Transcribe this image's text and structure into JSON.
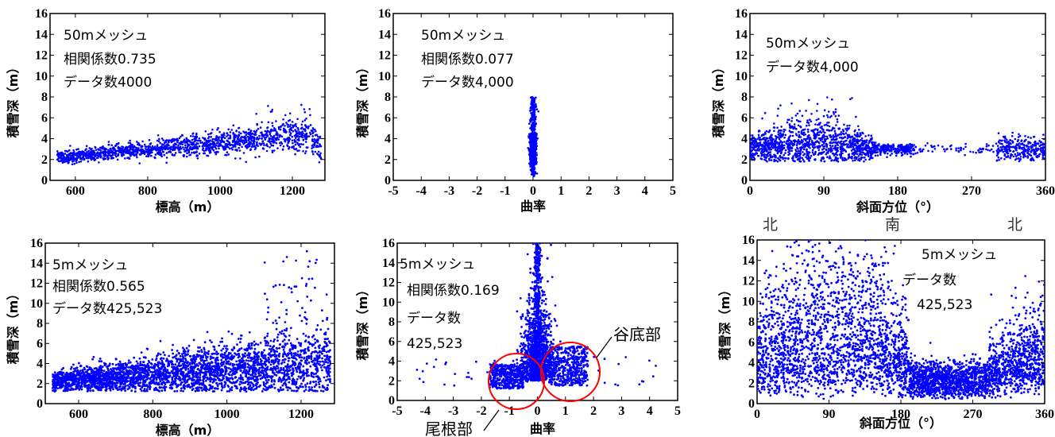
{
  "charts": [
    {
      "id": "p1",
      "xlabel": "標高（m）",
      "ylabel": "積雪深（m）",
      "annotations": [
        "50mメッシュ",
        "相関係数0.735",
        "データ数4000"
      ]
    },
    {
      "id": "p2",
      "xlabel": "曲率",
      "ylabel": "積雪深（m）",
      "annotations": [
        "50mメッシュ",
        "相関係数0.077",
        "データ数4,000"
      ]
    },
    {
      "id": "p3",
      "xlabel": "斜面方位（°）",
      "ylabel": "積雪深（m）",
      "annotations": [
        "50mメッシュ",
        "データ数4,000"
      ]
    },
    {
      "id": "p4",
      "xlabel": "標高（m）",
      "ylabel": "積雪深（m）",
      "annotations": [
        "5mメッシュ",
        "相関係数0.565",
        "データ数425,523"
      ]
    },
    {
      "id": "p5",
      "xlabel": "曲率",
      "ylabel": "積雪深（m）",
      "annotations": [
        "5mメッシュ",
        "相関係数0.169",
        "データ数",
        "425,523"
      ],
      "callouts": {
        "valley": "谷底部",
        "ridge": "尾根部"
      }
    },
    {
      "id": "p6",
      "xlabel": "斜面方位（°）",
      "ylabel": "積雪深（m）",
      "annotations": [
        "5mメッシュ",
        "データ数",
        "425,523"
      ],
      "directions": [
        "北",
        "南",
        "北"
      ]
    }
  ],
  "chart_data": [
    {
      "type": "scatter",
      "mesh": "50m",
      "correlation": 0.735,
      "count": 4000,
      "xlabel": "標高（m）",
      "ylabel": "積雪深（m）",
      "xlim": [
        530,
        1290
      ],
      "ylim": [
        0,
        16
      ],
      "xticks": [
        600,
        800,
        1000,
        1200
      ],
      "yticks": [
        0,
        2,
        4,
        6,
        8,
        10,
        12,
        14,
        16
      ],
      "points_summary": [
        {
          "x": 560,
          "y": 2.2
        },
        {
          "x": 700,
          "y": 2.6
        },
        {
          "x": 800,
          "y": 3.0
        },
        {
          "x": 900,
          "y": 3.4
        },
        {
          "x": 1000,
          "y": 3.8
        },
        {
          "x": 1100,
          "y": 4.2
        },
        {
          "x": 1200,
          "y": 4.4
        },
        {
          "x": 1230,
          "y": 7.8
        },
        {
          "x": 1280,
          "y": 2.5
        }
      ]
    },
    {
      "type": "scatter",
      "mesh": "50m",
      "correlation": 0.077,
      "count": 4000,
      "xlabel": "曲率",
      "ylabel": "積雪深（m）",
      "xlim": [
        -5,
        5
      ],
      "ylim": [
        0,
        16
      ],
      "xticks": [
        -5,
        -4,
        -3,
        -2,
        -1,
        0,
        1,
        2,
        3,
        4,
        5
      ],
      "yticks": [
        0,
        2,
        4,
        6,
        8,
        10,
        12,
        14,
        16
      ],
      "points_summary": [
        {
          "x": 0,
          "y": 0.5
        },
        {
          "x": 0,
          "y": 3.0
        },
        {
          "x": 0,
          "y": 8.0
        }
      ]
    },
    {
      "type": "scatter",
      "mesh": "50m",
      "count": 4000,
      "xlabel": "斜面方位（°）",
      "ylabel": "積雪深（m）",
      "xlim": [
        0,
        360
      ],
      "ylim": [
        0,
        16
      ],
      "xticks": [
        0,
        90,
        180,
        270,
        360
      ],
      "yticks": [
        0,
        2,
        4,
        6,
        8,
        10,
        12,
        14,
        16
      ],
      "points_summary": [
        {
          "x": 0,
          "y": 3.2
        },
        {
          "x": 80,
          "y": 4.0
        },
        {
          "x": 80,
          "y": 8.0
        },
        {
          "x": 180,
          "y": 3.0
        },
        {
          "x": 240,
          "y": 2.5
        },
        {
          "x": 330,
          "y": 3.0
        },
        {
          "x": 360,
          "y": 3.2
        }
      ]
    },
    {
      "type": "scatter",
      "mesh": "5m",
      "correlation": 0.565,
      "count": 425523,
      "xlabel": "標高（m）",
      "ylabel": "積雪深（m）",
      "xlim": [
        510,
        1290
      ],
      "ylim": [
        0,
        16
      ],
      "xticks": [
        600,
        800,
        1000,
        1200
      ],
      "yticks": [
        0,
        2,
        4,
        6,
        8,
        10,
        12,
        14,
        16
      ],
      "points_summary": [
        {
          "x": 540,
          "y": 2.3
        },
        {
          "x": 700,
          "y": 2.8
        },
        {
          "x": 900,
          "y": 3.3
        },
        {
          "x": 1000,
          "y": 3.7
        },
        {
          "x": 1100,
          "y": 4.0
        },
        {
          "x": 1200,
          "y": 4.3
        },
        {
          "x": 1200,
          "y": 15.5
        },
        {
          "x": 1270,
          "y": 3.5
        }
      ]
    },
    {
      "type": "scatter",
      "mesh": "5m",
      "correlation": 0.169,
      "count": 425523,
      "xlabel": "曲率",
      "ylabel": "積雪深（m）",
      "xlim": [
        -5,
        5
      ],
      "ylim": [
        0,
        16
      ],
      "xticks": [
        -5,
        -4,
        -3,
        -2,
        -1,
        0,
        1,
        2,
        3,
        4,
        5
      ],
      "yticks": [
        0,
        2,
        4,
        6,
        8,
        10,
        12,
        14,
        16
      ],
      "points_summary": [
        {
          "x": 0,
          "y": 3.0
        },
        {
          "x": 0,
          "y": 16.0
        },
        {
          "x": -1,
          "y": 2.5
        },
        {
          "x": 1,
          "y": 3.0
        }
      ],
      "callouts": [
        {
          "label": "尾根部",
          "x": -1,
          "y": 1.5
        },
        {
          "label": "谷底部",
          "x": 1,
          "y": 3.0
        }
      ]
    },
    {
      "type": "scatter",
      "mesh": "5m",
      "count": 425523,
      "xlabel": "斜面方位（°）",
      "ylabel": "積雪深（m）",
      "xlim": [
        0,
        360
      ],
      "ylim": [
        0,
        16
      ],
      "xticks": [
        0,
        90,
        180,
        270,
        360
      ],
      "yticks": [
        0,
        2,
        4,
        6,
        8,
        10,
        12,
        14,
        16
      ],
      "points_summary": [
        {
          "x": 0,
          "y": 4.0
        },
        {
          "x": 90,
          "y": 5.0
        },
        {
          "x": 90,
          "y": 15.5
        },
        {
          "x": 180,
          "y": 3.5
        },
        {
          "x": 270,
          "y": 3.0
        },
        {
          "x": 360,
          "y": 4.0
        }
      ]
    }
  ],
  "colors": {
    "points": "#0000ff",
    "circle": "#ff0000",
    "axis": "#000000"
  }
}
